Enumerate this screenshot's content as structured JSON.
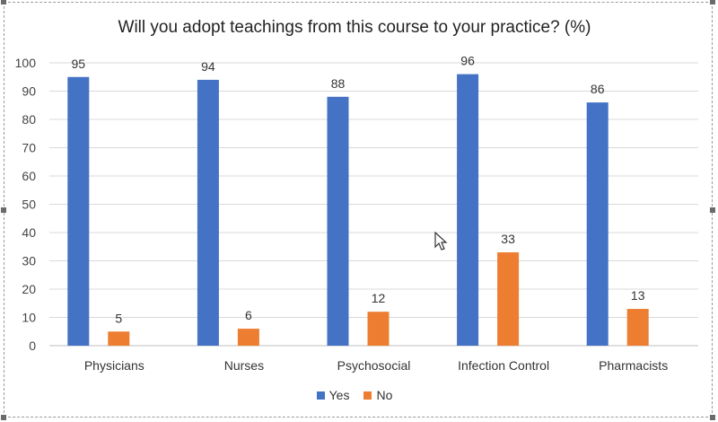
{
  "chart_data": {
    "type": "bar",
    "title": "Will you adopt teachings from this course to your practice? (%)",
    "categories": [
      "Physicians",
      "Nurses",
      "Psychosocial",
      "Infection Control",
      "Pharmacists"
    ],
    "series": [
      {
        "name": "Yes",
        "values": [
          95,
          94,
          88,
          96,
          86
        ],
        "color": "#4472C4"
      },
      {
        "name": "No",
        "values": [
          5,
          6,
          12,
          33,
          13
        ],
        "color": "#ED7D31"
      }
    ],
    "ylim": [
      0,
      100
    ],
    "yticks": [
      0,
      10,
      20,
      30,
      40,
      50,
      60,
      70,
      80,
      90,
      100
    ],
    "grid": true,
    "legend": "bottom",
    "xlabel": "",
    "ylabel": ""
  },
  "icons": {
    "cursor": "mouse-pointer-icon"
  }
}
